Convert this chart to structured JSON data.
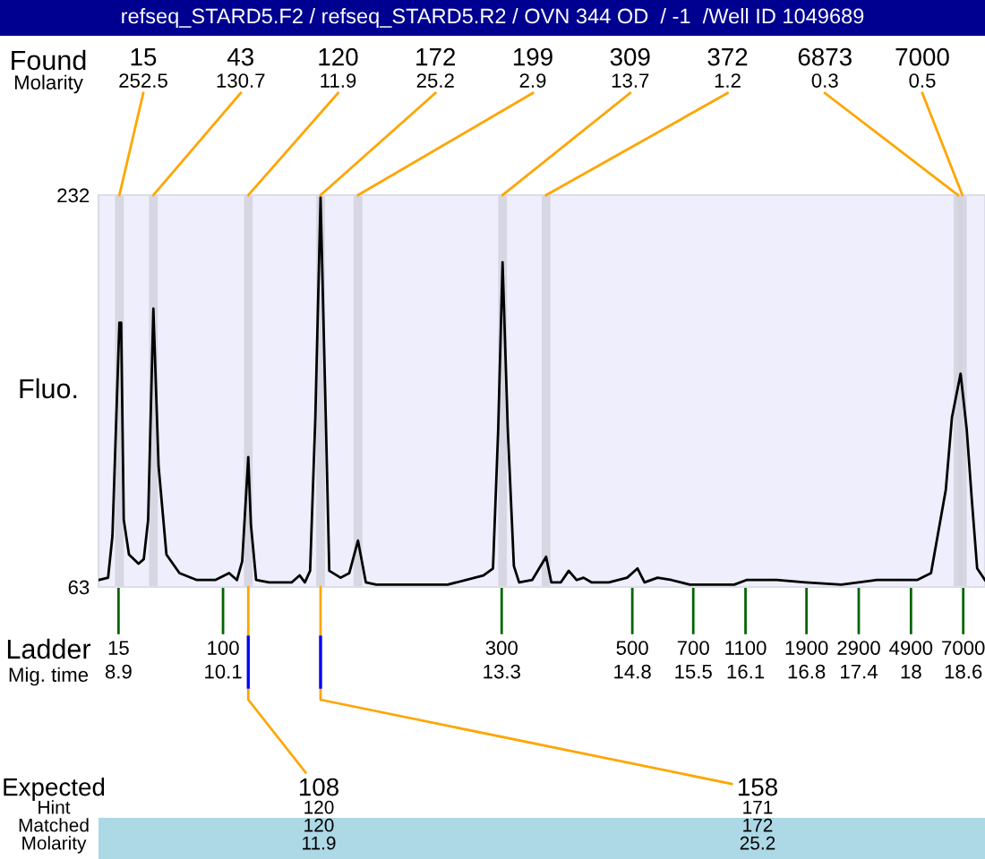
{
  "chart_data": {
    "type": "line",
    "title": "refseq_STARD5.F2 / refseq_STARD5.R2 / OVN 344 OD  / -1  /Well ID 1049689",
    "ylabel": "Fluo.",
    "x": [
      8.67,
      8.78,
      8.83,
      8.91,
      8.93,
      8.96,
      9.02,
      9.13,
      9.19,
      9.24,
      9.3,
      9.36,
      9.45,
      9.6,
      9.8,
      10.01,
      10.17,
      10.26,
      10.32,
      10.39,
      10.42,
      10.48,
      10.63,
      10.89,
      10.98,
      11.04,
      11.1,
      11.16,
      11.22,
      11.28,
      11.32,
      11.45,
      11.55,
      11.65,
      11.74,
      11.86,
      12.68,
      13.09,
      13.2,
      13.26,
      13.31,
      13.37,
      13.44,
      13.5,
      13.65,
      13.73,
      13.81,
      13.87,
      13.98,
      14.07,
      14.16,
      14.24,
      14.33,
      14.53,
      14.74,
      14.86,
      14.94,
      15.09,
      15.25,
      15.46,
      15.97,
      16.11,
      16.46,
      16.79,
      17.2,
      17.61,
      17.88,
      18.07,
      18.23,
      18.4,
      18.47,
      18.57,
      18.64,
      18.7,
      18.76,
      18.85
    ],
    "series": [
      {
        "color": "#000000",
        "values": [
          66,
          67,
          85,
          177,
          177,
          92,
          77,
          73,
          75,
          92,
          183,
          115,
          77,
          69,
          66,
          66,
          69,
          66,
          74,
          119,
          90,
          66,
          65,
          65,
          68,
          65,
          70,
          136,
          231,
          136,
          70,
          67,
          69,
          83,
          65,
          64,
          64,
          68,
          71,
          131,
          203,
          131,
          72,
          65,
          66,
          71,
          76,
          65,
          65,
          70,
          66,
          67,
          65,
          65,
          67,
          71,
          65,
          67,
          66,
          64,
          64,
          66,
          66,
          65,
          64,
          66,
          66,
          66,
          69,
          105,
          136,
          155,
          131,
          100,
          71,
          66
        ]
      }
    ],
    "xlim": [
      8.67,
      18.85
    ],
    "ylim": [
      63,
      232
    ],
    "yticks": [
      63,
      232
    ],
    "xticks": [
      8.9,
      10.1,
      13.3,
      14.8,
      15.5,
      16.1,
      16.8,
      17.4,
      18,
      18.6
    ],
    "bands": [
      {
        "axis": "x",
        "from": 8.86,
        "to": 8.96,
        "label": null,
        "color": "#d2d2de"
      },
      {
        "axis": "x",
        "from": 9.25,
        "to": 9.35,
        "label": null,
        "color": "#d2d2de"
      },
      {
        "axis": "x",
        "from": 10.34,
        "to": 10.44,
        "label": null,
        "color": "#d2d2de"
      },
      {
        "axis": "x",
        "from": 11.17,
        "to": 11.27,
        "label": null,
        "color": "#d2d2de"
      },
      {
        "axis": "x",
        "from": 11.6,
        "to": 11.7,
        "label": null,
        "color": "#d2d2de"
      },
      {
        "axis": "x",
        "from": 13.26,
        "to": 13.36,
        "label": null,
        "color": "#d2d2de"
      },
      {
        "axis": "x",
        "from": 13.76,
        "to": 13.86,
        "label": null,
        "color": "#d2d2de"
      },
      {
        "axis": "x",
        "from": 18.49,
        "to": 18.59,
        "label": null,
        "color": "#d2d2de"
      },
      {
        "axis": "x",
        "from": 18.54,
        "to": 18.64,
        "label": null,
        "color": "#d2d2de"
      }
    ],
    "annotations": [
      "Found",
      "Molarity",
      "Ladder",
      "Mig. time",
      "Expected",
      "Hint",
      "Matched",
      "Molarity",
      "15",
      "100",
      "300",
      "500",
      "700",
      "1100",
      "1900",
      "2900",
      "4900",
      "7000",
      "15",
      "252.5",
      "43",
      "130.7",
      "120",
      "11.9",
      "172",
      "25.2",
      "199",
      "2.9",
      "309",
      "13.7",
      "372",
      "1.2",
      "6873",
      "0.3",
      "7000",
      "0.5",
      {
        "text": "108",
        "x": 10.39,
        "y": 63
      },
      "120",
      "120",
      "11.9",
      {
        "text": "158",
        "x": 11.22,
        "y": 63
      },
      "171",
      "172",
      "25.2"
    ],
    "grid": false,
    "legend": false
  }
}
